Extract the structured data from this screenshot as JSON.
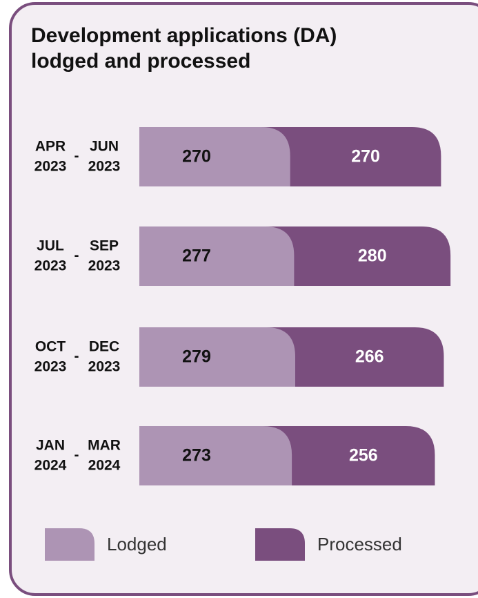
{
  "chart_data": {
    "type": "stacked-bar-horizontal",
    "title": [
      "Development applications (DA)",
      "lodged and processed"
    ],
    "range_separator": "-",
    "categories": [
      {
        "from": [
          "APR",
          "2023"
        ],
        "to": [
          "JUN",
          "2023"
        ]
      },
      {
        "from": [
          "JUL",
          "2023"
        ],
        "to": [
          "SEP",
          "2023"
        ]
      },
      {
        "from": [
          "OCT",
          "2023"
        ],
        "to": [
          "DEC",
          "2023"
        ]
      },
      {
        "from": [
          "JAN",
          "2024"
        ],
        "to": [
          "MAR",
          "2024"
        ]
      }
    ],
    "series": [
      {
        "name": "Lodged",
        "color": "#ad94b4",
        "label_color": "#111111",
        "values": [
          270,
          277,
          279,
          273
        ]
      },
      {
        "name": "Processed",
        "color": "#7a4e7e",
        "label_color": "#ffffff",
        "values": [
          270,
          280,
          266,
          256
        ]
      }
    ],
    "frame_color": "#7a4e7e",
    "background": "#f3eef3"
  }
}
